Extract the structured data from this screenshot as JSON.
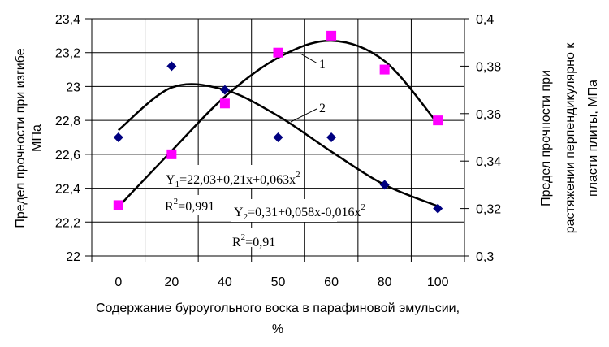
{
  "chart_data": {
    "type": "scatter",
    "categories": [
      "0",
      "20",
      "40",
      "50",
      "60",
      "80",
      "100"
    ],
    "xlabel": [
      "Содержание буроугольного воска в парафиновой эмульсии,",
      "%"
    ],
    "ylabel_left": [
      "Предел прочности при изгибе",
      "МПа"
    ],
    "ylabel_right": [
      "Предел прочности при",
      "растяжении перпендикулярно к",
      "пласти плиты, МПа"
    ],
    "ylim_left": [
      22,
      23.4
    ],
    "ylim_right": [
      0.3,
      0.4
    ],
    "yticks_left": [
      "22",
      "22,2",
      "22,4",
      "22,6",
      "22,8",
      "23",
      "23,2",
      "23,4"
    ],
    "yticks_right": [
      "0,3",
      "0,32",
      "0,34",
      "0,36",
      "0,38",
      "0,4"
    ],
    "grid": true,
    "series": [
      {
        "axis": "left",
        "marker": "square",
        "color": "#ff00ff",
        "values": [
          22.3,
          22.6,
          22.9,
          23.2,
          23.3,
          23.1,
          22.8
        ],
        "trendline": [
          22.29,
          22.62,
          22.94,
          23.17,
          23.27,
          23.15,
          22.78
        ],
        "curve_label": "1"
      },
      {
        "axis": "right",
        "marker": "diamond",
        "color": "#000080",
        "values": [
          0.35,
          0.38,
          0.37,
          0.35,
          0.35,
          0.33,
          0.32
        ],
        "trendline": [
          0.353,
          0.371,
          0.37,
          0.359,
          0.344,
          0.33,
          0.321
        ],
        "curve_label": "2"
      }
    ],
    "annotations": {
      "eq1": {
        "prefix": "Y",
        "sub": "1",
        "body": "=22,03+0,21x+0,063x",
        "sup": "2"
      },
      "r1": {
        "prefix": "R",
        "sup": "2",
        "body": "=0,991"
      },
      "eq2": {
        "prefix": "Y",
        "sub": "2",
        "body": "=0,31+0,058x-0,016x",
        "sup": "2"
      },
      "r2": {
        "prefix": "R",
        "sup": "2",
        "body": "=0,91"
      }
    }
  }
}
